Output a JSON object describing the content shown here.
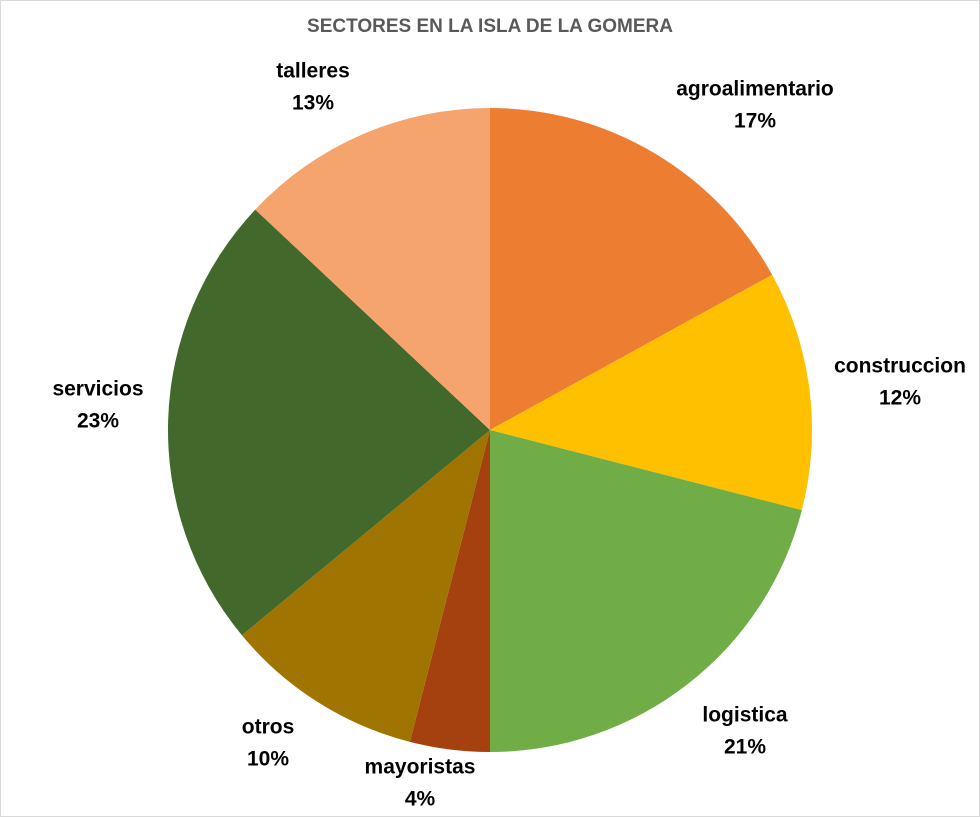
{
  "chart_data": {
    "type": "pie",
    "title": "SECTORES EN LA ISLA DE LA GOMERA",
    "categories": [
      "agroalimentario",
      "construccion",
      "logistica",
      "mayoristas",
      "otros",
      "servicios",
      "talleres"
    ],
    "values": [
      17,
      12,
      21,
      4,
      10,
      23,
      13
    ],
    "value_labels": [
      "17%",
      "12%",
      "21%",
      "4%",
      "10%",
      "23%",
      "13%"
    ],
    "colors": [
      "#ED7D31",
      "#FFC000",
      "#70AD47",
      "#A5400F",
      "#A07400",
      "#43682B",
      "#F4A46C"
    ]
  }
}
